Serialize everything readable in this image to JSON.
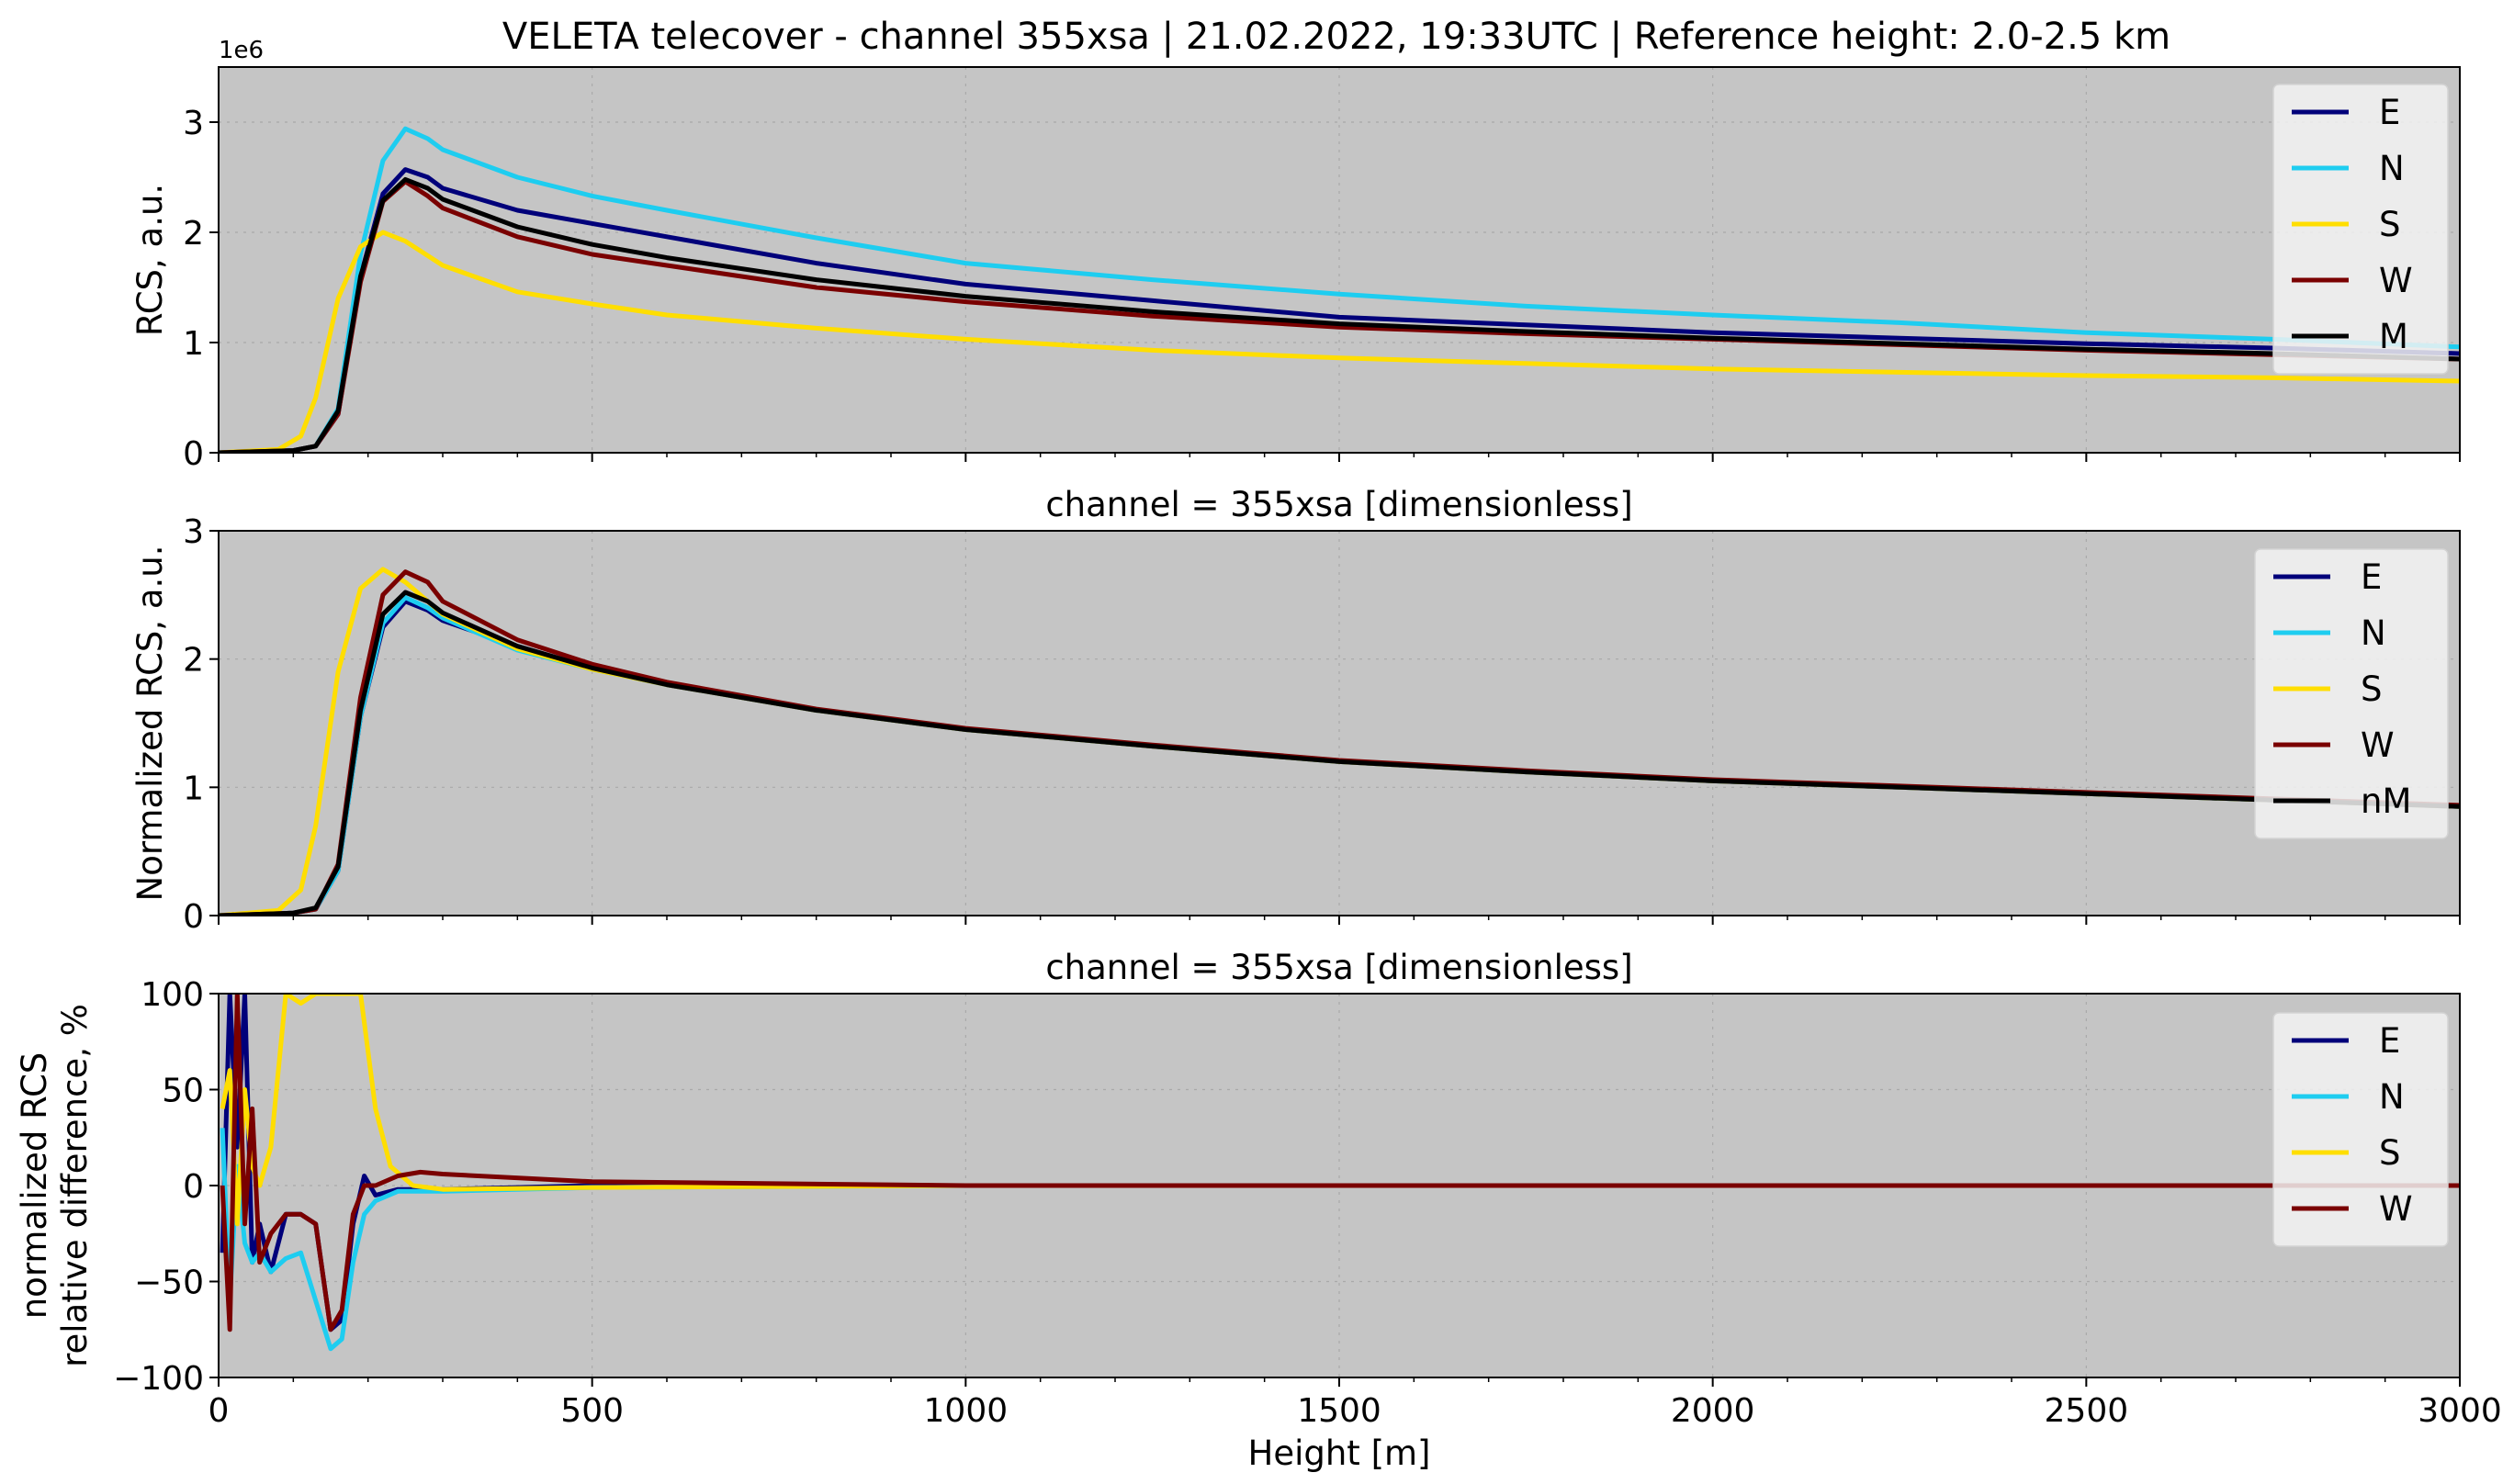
{
  "figure": {
    "title": "VELETA telecover - channel 355xsa | 21.02.2022, 19:33UTC | Reference height: 2.0-2.5 km",
    "background": "#c5c5c5"
  },
  "colors": {
    "E": "#00007a",
    "N": "#1ecdf0",
    "S": "#ffde00",
    "W": "#7a0000",
    "M": "#000000",
    "nM": "#000000"
  },
  "chart_data": [
    {
      "type": "line",
      "subtitle": "",
      "xlabel": "",
      "ylabel": "RCS, a.u.",
      "xlim": [
        0,
        3000
      ],
      "ylim": [
        0,
        3500000
      ],
      "xticks": [
        0,
        500,
        1000,
        1500,
        2000,
        2500,
        3000
      ],
      "xtick_labels": [
        "",
        "",
        "",
        "",
        "",
        "",
        ""
      ],
      "yticks": [
        0,
        1000000,
        2000000,
        3000000
      ],
      "ytick_labels": [
        "0",
        "1",
        "2",
        "3"
      ],
      "y_offset_text": "1e6",
      "grid": true,
      "legend_position": "top-right",
      "series": [
        {
          "name": "E",
          "x": [
            0,
            100,
            130,
            160,
            190,
            220,
            250,
            280,
            300,
            400,
            500,
            600,
            800,
            1000,
            1250,
            1500,
            1750,
            2000,
            2250,
            2500,
            2750,
            3000
          ],
          "y": [
            0,
            20000,
            60000,
            350000,
            1600000,
            2350000,
            2570000,
            2500000,
            2400000,
            2200000,
            2080000,
            1960000,
            1720000,
            1530000,
            1380000,
            1230000,
            1160000,
            1090000,
            1040000,
            990000,
            950000,
            900000
          ]
        },
        {
          "name": "N",
          "x": [
            0,
            100,
            130,
            160,
            190,
            220,
            250,
            280,
            300,
            400,
            500,
            600,
            800,
            1000,
            1250,
            1500,
            1750,
            2000,
            2250,
            2500,
            2750,
            3000
          ],
          "y": [
            0,
            20000,
            60000,
            400000,
            1800000,
            2650000,
            2940000,
            2850000,
            2750000,
            2500000,
            2330000,
            2200000,
            1950000,
            1720000,
            1570000,
            1440000,
            1330000,
            1250000,
            1180000,
            1090000,
            1030000,
            960000
          ]
        },
        {
          "name": "S",
          "x": [
            0,
            80,
            110,
            130,
            160,
            190,
            220,
            250,
            300,
            400,
            500,
            600,
            800,
            1000,
            1250,
            1500,
            1750,
            2000,
            2250,
            2500,
            2750,
            3000
          ],
          "y": [
            0,
            30000,
            150000,
            500000,
            1400000,
            1870000,
            2000000,
            1920000,
            1700000,
            1460000,
            1350000,
            1250000,
            1130000,
            1030000,
            930000,
            860000,
            810000,
            760000,
            730000,
            700000,
            680000,
            650000
          ]
        },
        {
          "name": "W",
          "x": [
            0,
            100,
            130,
            160,
            190,
            220,
            250,
            280,
            300,
            400,
            500,
            600,
            800,
            1000,
            1250,
            1500,
            1750,
            2000,
            2250,
            2500,
            2750,
            3000
          ],
          "y": [
            0,
            20000,
            60000,
            350000,
            1550000,
            2280000,
            2460000,
            2330000,
            2220000,
            1960000,
            1800000,
            1700000,
            1500000,
            1370000,
            1240000,
            1140000,
            1080000,
            1030000,
            980000,
            930000,
            890000,
            850000
          ]
        },
        {
          "name": "M",
          "x": [
            0,
            100,
            130,
            160,
            190,
            220,
            250,
            280,
            300,
            400,
            500,
            600,
            800,
            1000,
            1250,
            1500,
            1750,
            2000,
            2250,
            2500,
            2750,
            3000
          ],
          "y": [
            0,
            20000,
            60000,
            380000,
            1600000,
            2290000,
            2480000,
            2400000,
            2300000,
            2050000,
            1890000,
            1770000,
            1570000,
            1420000,
            1280000,
            1170000,
            1100000,
            1040000,
            990000,
            940000,
            900000,
            850000
          ]
        }
      ]
    },
    {
      "type": "line",
      "subtitle": "channel = 355xsa [dimensionless]",
      "xlabel": "",
      "ylabel": "Normalized RCS, a.u.",
      "xlim": [
        0,
        3000
      ],
      "ylim": [
        0,
        3
      ],
      "xticks": [
        0,
        500,
        1000,
        1500,
        2000,
        2500,
        3000
      ],
      "xtick_labels": [
        "",
        "",
        "",
        "",
        "",
        "",
        ""
      ],
      "yticks": [
        0,
        1,
        2,
        3
      ],
      "ytick_labels": [
        "0",
        "1",
        "2",
        "3"
      ],
      "y_offset_text": "",
      "grid": true,
      "legend_position": "top-right",
      "series": [
        {
          "name": "E",
          "x": [
            0,
            100,
            130,
            160,
            190,
            220,
            250,
            280,
            300,
            400,
            500,
            600,
            800,
            1000,
            1250,
            1500,
            1750,
            2000,
            2250,
            2500,
            2750,
            3000
          ],
          "y": [
            0,
            0.02,
            0.05,
            0.35,
            1.55,
            2.25,
            2.45,
            2.38,
            2.3,
            2.1,
            1.93,
            1.8,
            1.6,
            1.45,
            1.32,
            1.2,
            1.12,
            1.05,
            1.0,
            0.95,
            0.9,
            0.85
          ]
        },
        {
          "name": "N",
          "x": [
            0,
            100,
            130,
            160,
            190,
            220,
            250,
            280,
            300,
            400,
            500,
            600,
            800,
            1000,
            1250,
            1500,
            1750,
            2000,
            2250,
            2500,
            2750,
            3000
          ],
          "y": [
            0,
            0.02,
            0.05,
            0.35,
            1.55,
            2.28,
            2.48,
            2.4,
            2.32,
            2.07,
            1.92,
            1.8,
            1.6,
            1.45,
            1.32,
            1.2,
            1.12,
            1.05,
            1.0,
            0.95,
            0.9,
            0.85
          ]
        },
        {
          "name": "S",
          "x": [
            0,
            80,
            110,
            130,
            160,
            190,
            220,
            250,
            300,
            400,
            500,
            600,
            800,
            1000,
            1250,
            1500,
            1750,
            2000,
            2250,
            2500,
            2750,
            3000
          ],
          "y": [
            0,
            0.04,
            0.2,
            0.7,
            1.9,
            2.55,
            2.7,
            2.6,
            2.35,
            2.08,
            1.92,
            1.8,
            1.6,
            1.45,
            1.32,
            1.2,
            1.12,
            1.05,
            1.0,
            0.95,
            0.9,
            0.85
          ]
        },
        {
          "name": "W",
          "x": [
            0,
            100,
            130,
            160,
            190,
            220,
            250,
            280,
            300,
            400,
            500,
            600,
            800,
            1000,
            1250,
            1500,
            1750,
            2000,
            2250,
            2500,
            2750,
            3000
          ],
          "y": [
            0,
            0.02,
            0.05,
            0.4,
            1.7,
            2.5,
            2.68,
            2.6,
            2.45,
            2.15,
            1.96,
            1.82,
            1.61,
            1.46,
            1.33,
            1.21,
            1.13,
            1.06,
            1.01,
            0.96,
            0.91,
            0.86
          ]
        },
        {
          "name": "nM",
          "x": [
            0,
            100,
            130,
            160,
            190,
            220,
            250,
            280,
            300,
            400,
            500,
            600,
            800,
            1000,
            1250,
            1500,
            1750,
            2000,
            2250,
            2500,
            2750,
            3000
          ],
          "y": [
            0,
            0.02,
            0.06,
            0.38,
            1.6,
            2.35,
            2.52,
            2.45,
            2.36,
            2.1,
            1.93,
            1.8,
            1.6,
            1.45,
            1.32,
            1.2,
            1.12,
            1.05,
            1.0,
            0.95,
            0.9,
            0.85
          ]
        }
      ]
    },
    {
      "type": "line",
      "subtitle": "channel = 355xsa [dimensionless]",
      "xlabel": "Height [m]",
      "ylabel": "normalized RCS\nrelative difference, %",
      "xlim": [
        0,
        3000
      ],
      "ylim": [
        -100,
        100
      ],
      "xticks": [
        0,
        500,
        1000,
        1500,
        2000,
        2500,
        3000
      ],
      "xtick_labels": [
        "0",
        "500",
        "1000",
        "1500",
        "2000",
        "2500",
        "3000"
      ],
      "yticks": [
        -100,
        -50,
        0,
        50,
        100
      ],
      "ytick_labels": [
        "−100",
        "−50",
        "0",
        "50",
        "100"
      ],
      "y_offset_text": "",
      "grid": true,
      "legend_position": "top-right",
      "series": [
        {
          "name": "E",
          "x": [
            5,
            15,
            25,
            35,
            45,
            55,
            70,
            90,
            110,
            130,
            150,
            165,
            180,
            195,
            210,
            240,
            300,
            500,
            1000,
            1500,
            2000,
            2500,
            3000
          ],
          "y": [
            -35,
            100,
            20,
            100,
            -40,
            -20,
            -45,
            -15,
            -15,
            -20,
            -75,
            -70,
            -20,
            5,
            -5,
            -2,
            -2,
            0,
            0,
            0,
            0,
            0,
            0
          ]
        },
        {
          "name": "N",
          "x": [
            5,
            15,
            25,
            35,
            45,
            55,
            70,
            90,
            110,
            130,
            150,
            165,
            180,
            195,
            210,
            240,
            300,
            500,
            1000,
            1500,
            2000,
            2500,
            3000
          ],
          "y": [
            30,
            -60,
            10,
            -30,
            -40,
            -35,
            -45,
            -38,
            -35,
            -60,
            -85,
            -80,
            -40,
            -15,
            -8,
            -3,
            -3,
            -1,
            0,
            0,
            0,
            0,
            0
          ]
        },
        {
          "name": "S",
          "x": [
            5,
            15,
            25,
            35,
            45,
            55,
            70,
            90,
            110,
            130,
            150,
            170,
            190,
            210,
            230,
            260,
            300,
            500,
            1000,
            1500,
            2000,
            2500,
            3000
          ],
          "y": [
            40,
            60,
            -20,
            50,
            10,
            0,
            20,
            100,
            95,
            100,
            100,
            100,
            100,
            40,
            10,
            0,
            -2,
            -1,
            0,
            0,
            0,
            0,
            0
          ]
        },
        {
          "name": "W",
          "x": [
            5,
            15,
            25,
            35,
            45,
            55,
            70,
            90,
            110,
            130,
            150,
            165,
            180,
            195,
            210,
            240,
            270,
            300,
            500,
            1000,
            1500,
            2000,
            2500,
            3000
          ],
          "y": [
            0,
            -75,
            100,
            -20,
            40,
            -40,
            -25,
            -15,
            -15,
            -20,
            -75,
            -65,
            -15,
            0,
            0,
            5,
            7,
            6,
            2,
            0,
            0,
            0,
            0,
            0
          ]
        }
      ]
    }
  ]
}
